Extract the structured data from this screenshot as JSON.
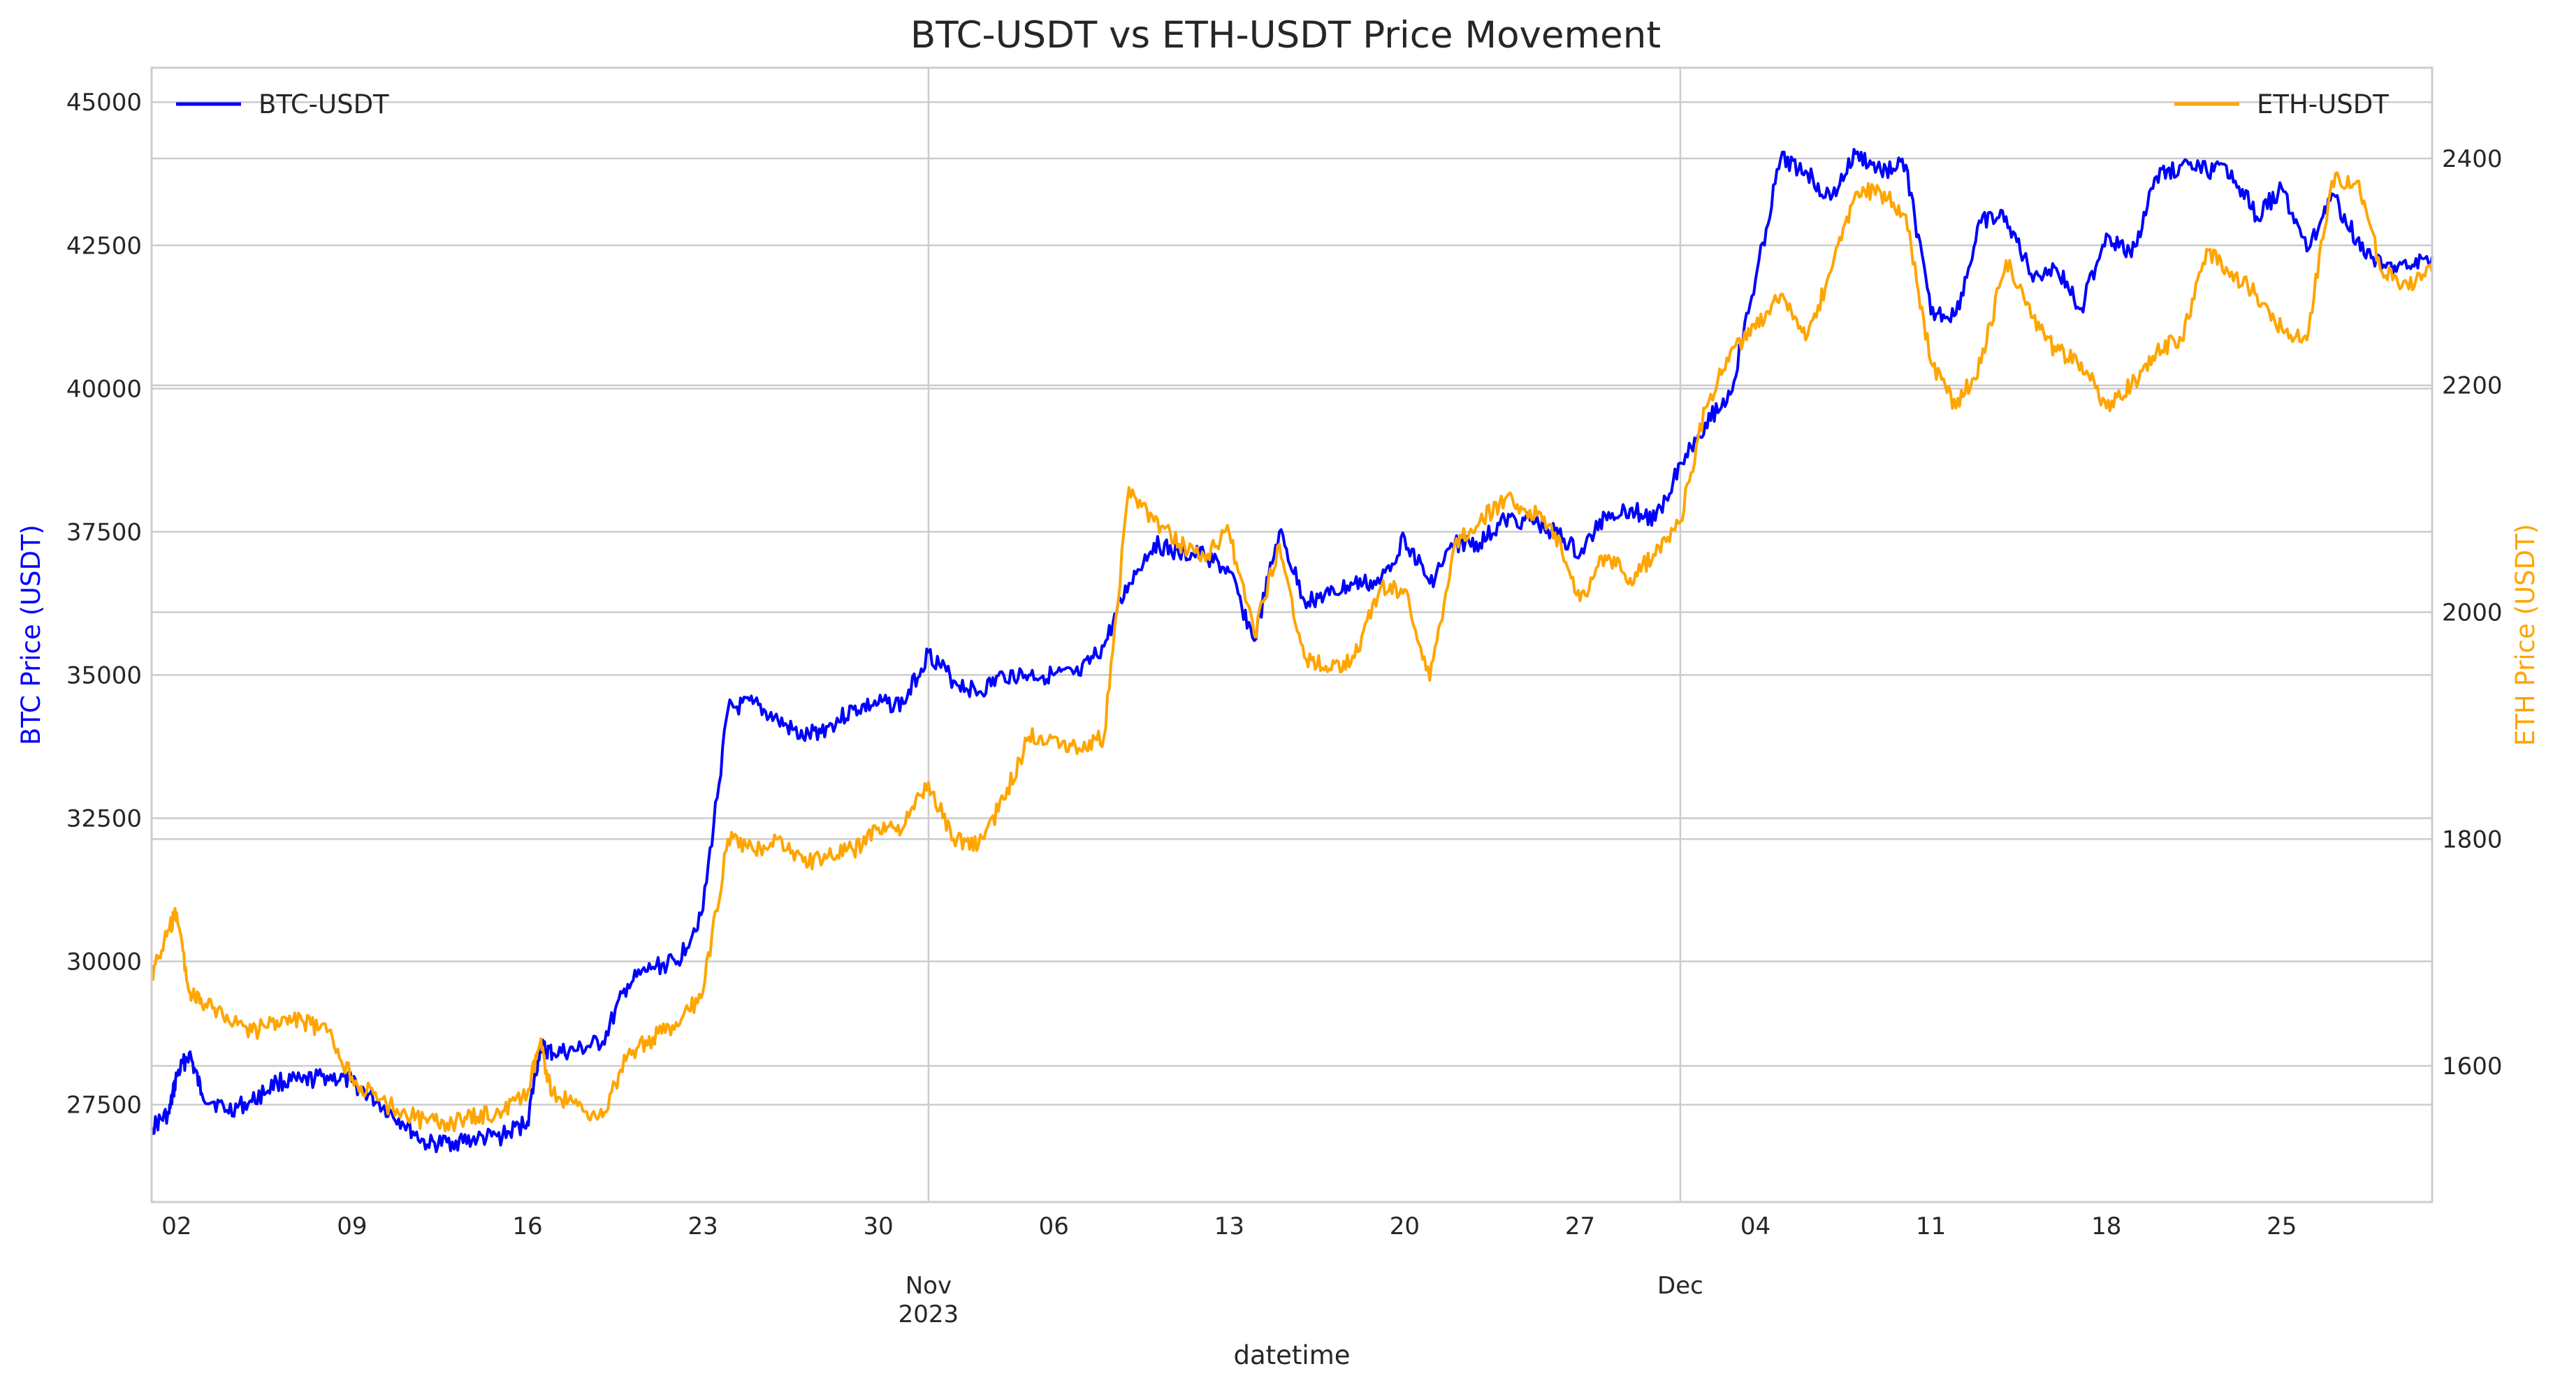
{
  "chart_data": {
    "type": "line",
    "title": "BTC-USDT vs ETH-USDT Price Movement",
    "xlabel": "datetime",
    "ylabel_left": "BTC Price (USDT)",
    "ylabel_right": "ETH Price (USDT)",
    "grid": true,
    "x_range": [
      "2023-10-01",
      "2023-12-31"
    ],
    "y_left_range": [
      25800,
      45600
    ],
    "y_right_range": [
      1480,
      2480
    ],
    "y_left_ticks": [
      27500,
      30000,
      32500,
      35000,
      37500,
      40000,
      42500,
      45000
    ],
    "y_right_ticks": [
      1600,
      1800,
      2000,
      2200,
      2400
    ],
    "x_minor_ticks": [
      {
        "date": "2023-10-02",
        "label": "02"
      },
      {
        "date": "2023-10-09",
        "label": "09"
      },
      {
        "date": "2023-10-16",
        "label": "16"
      },
      {
        "date": "2023-10-23",
        "label": "23"
      },
      {
        "date": "2023-10-30",
        "label": "30"
      },
      {
        "date": "2023-11-06",
        "label": "06"
      },
      {
        "date": "2023-11-13",
        "label": "13"
      },
      {
        "date": "2023-11-20",
        "label": "20"
      },
      {
        "date": "2023-11-27",
        "label": "27"
      },
      {
        "date": "2023-12-04",
        "label": "04"
      },
      {
        "date": "2023-12-11",
        "label": "11"
      },
      {
        "date": "2023-12-18",
        "label": "18"
      },
      {
        "date": "2023-12-25",
        "label": "25"
      }
    ],
    "x_major_ticks": [
      {
        "date": "2023-11-01",
        "label": "Nov",
        "sublabel": "2023"
      },
      {
        "date": "2023-12-01",
        "label": "Dec",
        "sublabel": ""
      }
    ],
    "legend": [
      {
        "name": "BTC-USDT",
        "color": "#0000ff",
        "placement": "upper-left"
      },
      {
        "name": "ETH-USDT",
        "color": "#ffa500",
        "placement": "upper-right"
      }
    ],
    "series": [
      {
        "name": "BTC-USDT",
        "axis": "left",
        "color": "#0000ff",
        "points": [
          [
            "2023-10-01",
            27100
          ],
          [
            "2023-10-01.7",
            27350
          ],
          [
            "2023-10-02",
            28000
          ],
          [
            "2023-10-02.5",
            28400
          ],
          [
            "2023-10-03",
            27700
          ],
          [
            "2023-10-04",
            27400
          ],
          [
            "2023-10-05",
            27550
          ],
          [
            "2023-10-06",
            27900
          ],
          [
            "2023-10-07",
            27900
          ],
          [
            "2023-10-08",
            28000
          ],
          [
            "2023-10-09",
            27900
          ],
          [
            "2023-10-10",
            27550
          ],
          [
            "2023-10-11",
            27200
          ],
          [
            "2023-10-12",
            26800
          ],
          [
            "2023-10-13",
            26850
          ],
          [
            "2023-10-14",
            26900
          ],
          [
            "2023-10-15",
            26950
          ],
          [
            "2023-10-16",
            27200
          ],
          [
            "2023-10-16.5",
            28500
          ],
          [
            "2023-10-17",
            28400
          ],
          [
            "2023-10-18",
            28450
          ],
          [
            "2023-10-19",
            28600
          ],
          [
            "2023-10-20",
            29600
          ],
          [
            "2023-10-21",
            29900
          ],
          [
            "2023-10-22",
            30000
          ],
          [
            "2023-10-23",
            30900
          ],
          [
            "2023-10-24",
            34400
          ],
          [
            "2023-10-25",
            34500
          ],
          [
            "2023-10-26",
            34200
          ],
          [
            "2023-10-27",
            33900
          ],
          [
            "2023-10-28",
            34100
          ],
          [
            "2023-10-29",
            34400
          ],
          [
            "2023-10-30",
            34500
          ],
          [
            "2023-10-31",
            34500
          ],
          [
            "2023-11-01",
            35400
          ],
          [
            "2023-11-02",
            34900
          ],
          [
            "2023-11-03",
            34700
          ],
          [
            "2023-11-04",
            35000
          ],
          [
            "2023-11-05",
            35000
          ],
          [
            "2023-11-06",
            35000
          ],
          [
            "2023-11-07",
            35000
          ],
          [
            "2023-11-08",
            35500
          ],
          [
            "2023-11-09",
            36600
          ],
          [
            "2023-11-10",
            37300
          ],
          [
            "2023-11-11",
            37100
          ],
          [
            "2023-11-12",
            37100
          ],
          [
            "2023-11-13",
            36800
          ],
          [
            "2023-11-14",
            35600
          ],
          [
            "2023-11-15",
            37500
          ],
          [
            "2023-11-16",
            36300
          ],
          [
            "2023-11-17",
            36400
          ],
          [
            "2023-11-18",
            36600
          ],
          [
            "2023-11-19",
            36600
          ],
          [
            "2023-11-20",
            37400
          ],
          [
            "2023-11-21",
            36600
          ],
          [
            "2023-11-22",
            37300
          ],
          [
            "2023-11-23",
            37300
          ],
          [
            "2023-11-24",
            37700
          ],
          [
            "2023-11-25",
            37700
          ],
          [
            "2023-11-26",
            37500
          ],
          [
            "2023-11-27",
            37100
          ],
          [
            "2023-11-28",
            37800
          ],
          [
            "2023-11-29",
            37900
          ],
          [
            "2023-11-30",
            37700
          ],
          [
            "2023-12-01",
            38700
          ],
          [
            "2023-12-02",
            39400
          ],
          [
            "2023-12-03",
            39900
          ],
          [
            "2023-12-04",
            41900
          ],
          [
            "2023-12-05",
            44000
          ],
          [
            "2023-12-06",
            43800
          ],
          [
            "2023-12-07",
            43300
          ],
          [
            "2023-12-08",
            44100
          ],
          [
            "2023-12-09",
            43800
          ],
          [
            "2023-12-10",
            43900
          ],
          [
            "2023-12-11",
            41300
          ],
          [
            "2023-12-12",
            41300
          ],
          [
            "2023-12-13",
            42900
          ],
          [
            "2023-12-14",
            43000
          ],
          [
            "2023-12-15",
            42000
          ],
          [
            "2023-12-16",
            42100
          ],
          [
            "2023-12-17",
            41400
          ],
          [
            "2023-12-18",
            42700
          ],
          [
            "2023-12-19",
            42300
          ],
          [
            "2023-12-20",
            43700
          ],
          [
            "2023-12-21",
            43900
          ],
          [
            "2023-12-22",
            43800
          ],
          [
            "2023-12-23",
            43800
          ],
          [
            "2023-12-24",
            43000
          ],
          [
            "2023-12-25",
            43500
          ],
          [
            "2023-12-26",
            42400
          ],
          [
            "2023-12-27",
            43400
          ],
          [
            "2023-12-28",
            42600
          ],
          [
            "2023-12-29",
            42100
          ],
          [
            "2023-12-30",
            42100
          ],
          [
            "2023-12-31",
            42300
          ]
        ]
      },
      {
        "name": "ETH-USDT",
        "axis": "right",
        "color": "#ffa500",
        "points": [
          [
            "2023-10-01",
            1680
          ],
          [
            "2023-10-01.7",
            1720
          ],
          [
            "2023-10-02",
            1735
          ],
          [
            "2023-10-02.5",
            1665
          ],
          [
            "2023-10-03",
            1655
          ],
          [
            "2023-10-04",
            1645
          ],
          [
            "2023-10-05",
            1630
          ],
          [
            "2023-10-06",
            1640
          ],
          [
            "2023-10-07",
            1640
          ],
          [
            "2023-10-08",
            1630
          ],
          [
            "2023-10-09",
            1590
          ],
          [
            "2023-10-10",
            1570
          ],
          [
            "2023-10-11",
            1560
          ],
          [
            "2023-10-12",
            1550
          ],
          [
            "2023-10-13",
            1550
          ],
          [
            "2023-10-14",
            1555
          ],
          [
            "2023-10-15",
            1560
          ],
          [
            "2023-10-16",
            1575
          ],
          [
            "2023-10-16.5",
            1620
          ],
          [
            "2023-10-17",
            1575
          ],
          [
            "2023-10-18",
            1565
          ],
          [
            "2023-10-19",
            1555
          ],
          [
            "2023-10-20",
            1610
          ],
          [
            "2023-10-21",
            1625
          ],
          [
            "2023-10-22",
            1635
          ],
          [
            "2023-10-23",
            1665
          ],
          [
            "2023-10-24",
            1800
          ],
          [
            "2023-10-25",
            1790
          ],
          [
            "2023-10-26",
            1800
          ],
          [
            "2023-10-27",
            1780
          ],
          [
            "2023-10-28",
            1785
          ],
          [
            "2023-10-29",
            1790
          ],
          [
            "2023-10-30",
            1810
          ],
          [
            "2023-10-31",
            1810
          ],
          [
            "2023-11-01",
            1850
          ],
          [
            "2023-11-02",
            1800
          ],
          [
            "2023-11-03",
            1795
          ],
          [
            "2023-11-04",
            1835
          ],
          [
            "2023-11-05",
            1890
          ],
          [
            "2023-11-06",
            1890
          ],
          [
            "2023-11-07",
            1880
          ],
          [
            "2023-11-08",
            1890
          ],
          [
            "2023-11-09",
            2110
          ],
          [
            "2023-11-10",
            2080
          ],
          [
            "2023-11-11",
            2060
          ],
          [
            "2023-11-12",
            2050
          ],
          [
            "2023-11-13",
            2070
          ],
          [
            "2023-11-14",
            1980
          ],
          [
            "2023-11-15",
            2060
          ],
          [
            "2023-11-16",
            1960
          ],
          [
            "2023-11-17",
            1950
          ],
          [
            "2023-11-18",
            1960
          ],
          [
            "2023-11-19",
            2020
          ],
          [
            "2023-11-20",
            2020
          ],
          [
            "2023-11-21",
            1940
          ],
          [
            "2023-11-22",
            2060
          ],
          [
            "2023-11-23",
            2080
          ],
          [
            "2023-11-24",
            2100
          ],
          [
            "2023-11-25",
            2090
          ],
          [
            "2023-11-26",
            2070
          ],
          [
            "2023-11-27",
            2010
          ],
          [
            "2023-11-28",
            2050
          ],
          [
            "2023-11-29",
            2030
          ],
          [
            "2023-11-30",
            2050
          ],
          [
            "2023-12-01",
            2080
          ],
          [
            "2023-12-02",
            2180
          ],
          [
            "2023-12-03",
            2230
          ],
          [
            "2023-12-04",
            2250
          ],
          [
            "2023-12-05",
            2280
          ],
          [
            "2023-12-06",
            2240
          ],
          [
            "2023-12-07",
            2300
          ],
          [
            "2023-12-08",
            2370
          ],
          [
            "2023-12-09",
            2370
          ],
          [
            "2023-12-10",
            2350
          ],
          [
            "2023-12-11",
            2220
          ],
          [
            "2023-12-12",
            2180
          ],
          [
            "2023-12-13",
            2220
          ],
          [
            "2023-12-14",
            2310
          ],
          [
            "2023-12-15",
            2260
          ],
          [
            "2023-12-16",
            2230
          ],
          [
            "2023-12-17",
            2220
          ],
          [
            "2023-12-18",
            2180
          ],
          [
            "2023-12-19",
            2200
          ],
          [
            "2023-12-20",
            2230
          ],
          [
            "2023-12-21",
            2240
          ],
          [
            "2023-12-22",
            2320
          ],
          [
            "2023-12-23",
            2300
          ],
          [
            "2023-12-24",
            2280
          ],
          [
            "2023-12-25",
            2250
          ],
          [
            "2023-12-26",
            2240
          ],
          [
            "2023-12-27",
            2380
          ],
          [
            "2023-12-28",
            2380
          ],
          [
            "2023-12-29",
            2300
          ],
          [
            "2023-12-30",
            2290
          ],
          [
            "2023-12-31",
            2300
          ]
        ]
      }
    ]
  }
}
